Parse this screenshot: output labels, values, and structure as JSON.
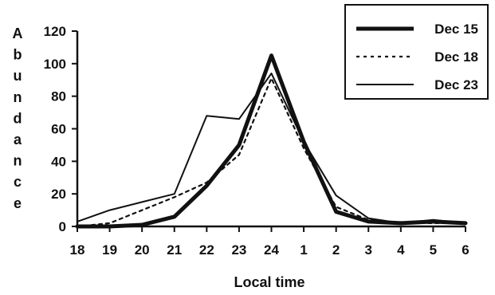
{
  "chart_data": {
    "type": "line",
    "title": "",
    "xlabel": "Local time",
    "ylabel": "Abundance",
    "categories": [
      "18",
      "19",
      "20",
      "21",
      "22",
      "23",
      "24",
      "1",
      "2",
      "3",
      "4",
      "5",
      "6"
    ],
    "ylim": [
      0,
      120
    ],
    "yticks": [
      "0",
      "20",
      "40",
      "60",
      "80",
      "100",
      "120"
    ],
    "grid": false,
    "legend_position": "top-right",
    "series": [
      {
        "name": "Dec 15",
        "style": "thick-solid",
        "color": "#111111",
        "values": [
          0,
          0,
          1,
          6,
          25,
          50,
          105,
          52,
          9,
          3,
          2,
          3,
          2
        ]
      },
      {
        "name": "Dec 18",
        "style": "dashed",
        "color": "#111111",
        "values": [
          0,
          2,
          10,
          18,
          27,
          44,
          91,
          48,
          12,
          4,
          2,
          2,
          2
        ]
      },
      {
        "name": "Dec 23",
        "style": "thin-solid",
        "color": "#111111",
        "values": [
          3,
          10,
          15,
          20,
          68,
          66,
          94,
          52,
          19,
          5,
          2,
          4,
          2
        ]
      }
    ]
  }
}
